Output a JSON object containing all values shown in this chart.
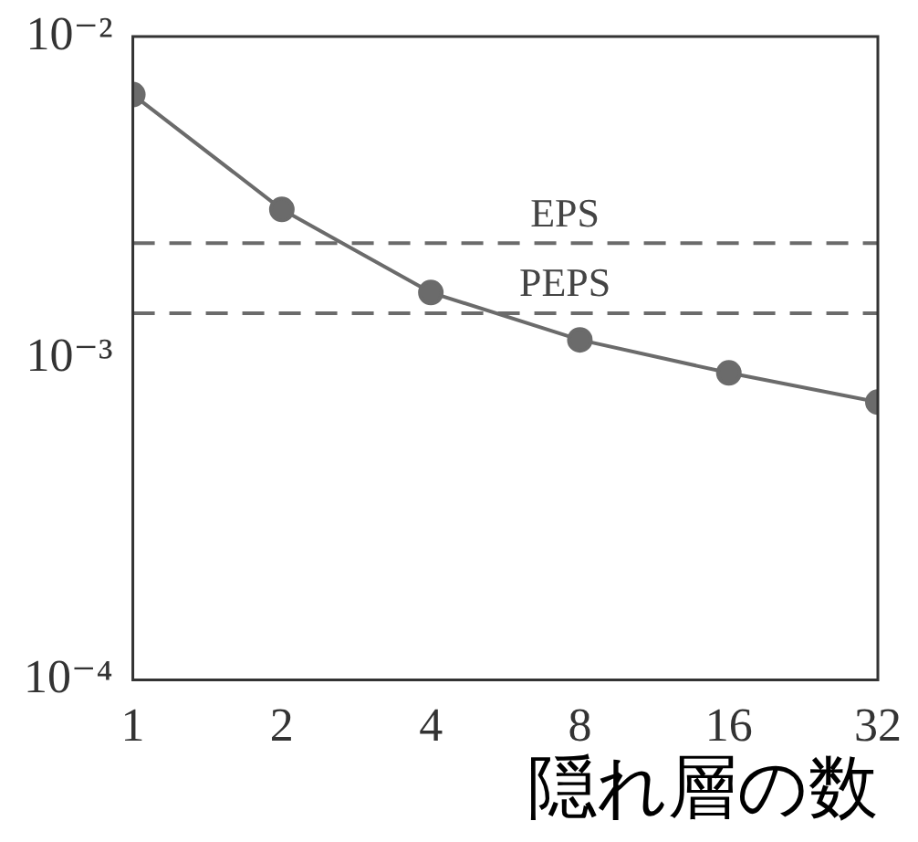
{
  "chart_data": {
    "type": "line",
    "xlabel": "隠れ層の数",
    "x": [
      1,
      2,
      4,
      8,
      16,
      32
    ],
    "series": [
      {
        "color": "#6b6b6b",
        "values": [
          0.0066,
          0.0029,
          0.0016,
          0.00114,
          0.0009,
          0.00073
        ]
      }
    ],
    "log": "xy",
    "xlim": [
      1,
      32
    ],
    "xticks": [
      1,
      2,
      4,
      8,
      16,
      32
    ],
    "ylim": [
      0.0001,
      0.01
    ],
    "yticks": [
      {
        "value": 0.0001,
        "label": "10⁻⁴"
      },
      {
        "value": 0.001,
        "label": "10⁻³"
      },
      {
        "value": 0.01,
        "label": "10⁻²"
      }
    ],
    "ref_lines": [
      {
        "axis": "y",
        "value": 0.00228,
        "label": "EPS",
        "color": "#6b6b6b",
        "line_style": "dashed"
      },
      {
        "axis": "y",
        "value": 0.00138,
        "label": "PEPS",
        "color": "#6b6b6b",
        "line_style": "dashed"
      }
    ],
    "grid": false,
    "legend": false,
    "marker": "circle",
    "line_style": "solid"
  }
}
